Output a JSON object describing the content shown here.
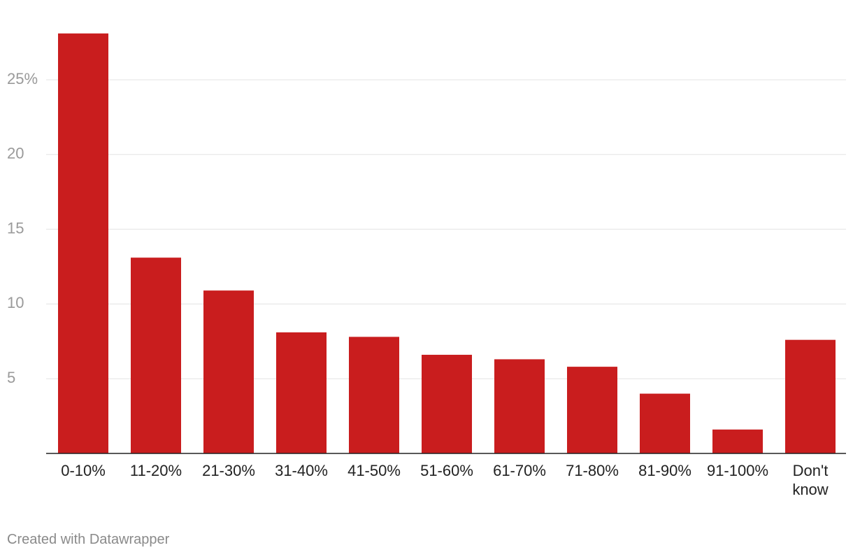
{
  "chart_data": {
    "type": "bar",
    "categories": [
      "0-10%",
      "11-20%",
      "21-30%",
      "31-40%",
      "41-50%",
      "51-60%",
      "61-70%",
      "71-80%",
      "81-90%",
      "91-100%",
      "Don't know"
    ],
    "values": [
      28.1,
      13.1,
      10.9,
      8.1,
      7.8,
      6.6,
      6.3,
      5.8,
      4.0,
      1.6,
      7.6
    ],
    "yticks": [
      5,
      10,
      15,
      20,
      25
    ],
    "ytick_labels": [
      "5",
      "10",
      "15",
      "20",
      "25%"
    ],
    "ylim": [
      0,
      28.1
    ],
    "grid": true,
    "bar_color": "#c91d1e",
    "title": "",
    "xlabel": "",
    "ylabel": ""
  },
  "footer": {
    "credit": "Created with Datawrapper"
  }
}
